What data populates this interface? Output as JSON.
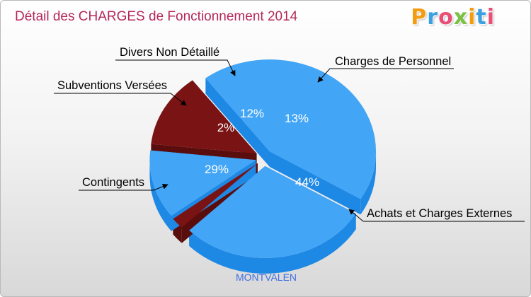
{
  "title": "Détail des CHARGES de Fonctionnement 2014",
  "logo": {
    "text": "Proxiti",
    "letters": [
      "P",
      "r",
      "o",
      "x",
      "i",
      "t",
      "i"
    ],
    "colors": [
      "#f39c12",
      "#3aa0e0",
      "#e94e77",
      "#7ac143",
      "#f39c12",
      "#3aa0e0",
      "#e94e77"
    ]
  },
  "footer": "MONTVALEN",
  "colors": {
    "blue": "#42a5f5",
    "blue_side": "#1e88e5",
    "red": "#7a1313",
    "red_side": "#5a0d0d",
    "title": "#b5275b",
    "footer": "#3f6fe0"
  },
  "chart_data": {
    "type": "pie",
    "title": "Détail des CHARGES de Fonctionnement 2014",
    "subtitle": "MONTVALEN",
    "slices": [
      {
        "label": "Charges de Personnel",
        "percent": 13,
        "percent_label": "13%",
        "color": "#7a1313"
      },
      {
        "label": "Achats et Charges Externes",
        "percent": 44,
        "percent_label": "44%",
        "color": "#42a5f5"
      },
      {
        "label": "Contingents",
        "percent": 29,
        "percent_label": "29%",
        "color": "#42a5f5"
      },
      {
        "label": "Subventions Versées",
        "percent": 2,
        "percent_label": "2%",
        "color": "#7a1313"
      },
      {
        "label": "Divers Non Détaillé",
        "percent": 12,
        "percent_label": "12%",
        "color": "#42a5f5"
      }
    ]
  }
}
